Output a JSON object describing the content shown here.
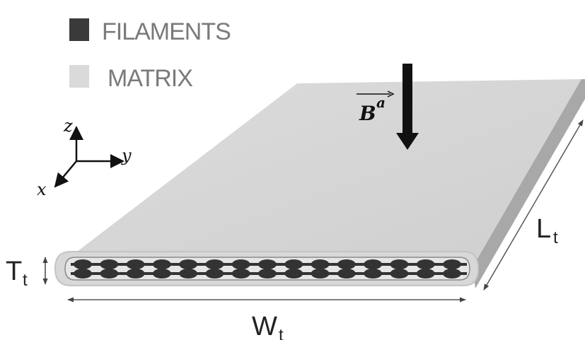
{
  "legend": {
    "filaments_label": "FILAMENTS",
    "matrix_label": "MATRIX",
    "filaments_color": "#3a3a3a",
    "matrix_color": "#d9d9d9"
  },
  "axes": {
    "z": "z",
    "y": "y",
    "x": "x"
  },
  "field": {
    "symbol": "B",
    "superscript": "a"
  },
  "dimensions": {
    "thickness": {
      "main": "T",
      "sub": "t"
    },
    "width": {
      "main": "W",
      "sub": "t"
    },
    "length": {
      "main": "L",
      "sub": "t"
    }
  },
  "colors": {
    "tape_top": "#d4d4d4",
    "tape_side": "#a8a8a8",
    "tape_edge": "#c8c8c8",
    "filament": "#333333",
    "arrow": "#111111"
  },
  "filament_count": 15
}
